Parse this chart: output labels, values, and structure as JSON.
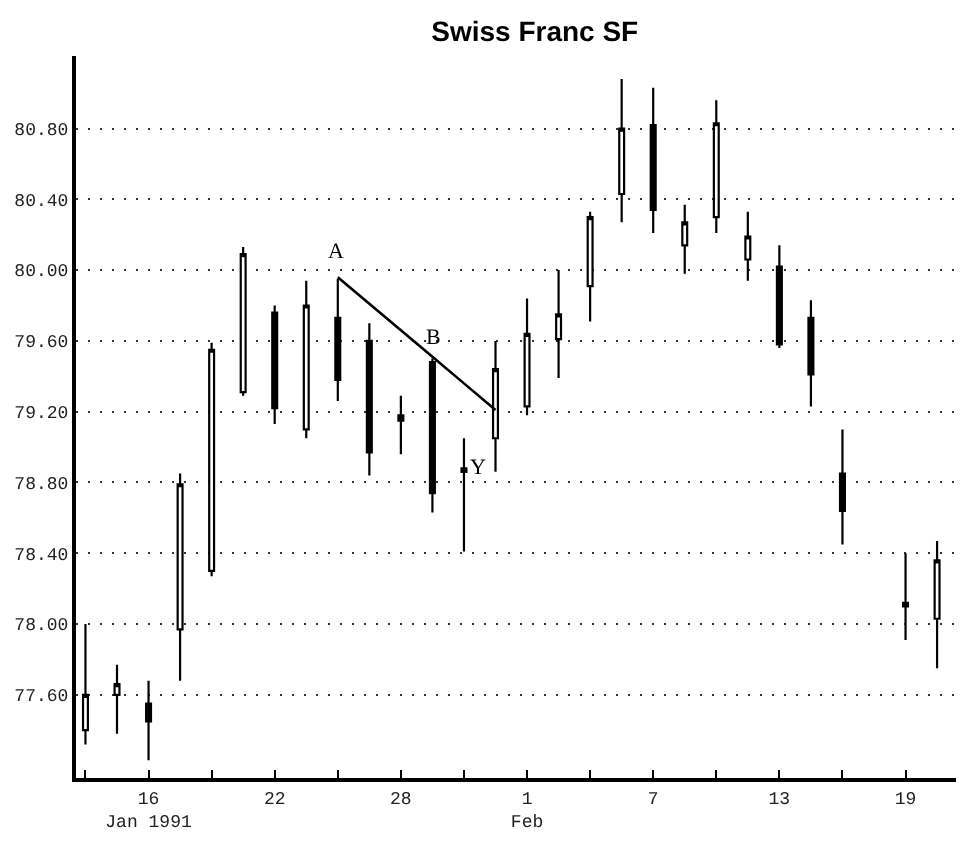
{
  "chart_data": {
    "type": "candlestick",
    "title": "Swiss Franc SF",
    "color": "#000000",
    "categories": [
      null,
      null,
      "16\nJan 1991",
      null,
      null,
      null,
      "22",
      null,
      null,
      null,
      "28",
      null,
      null,
      null,
      "1\nFeb",
      null,
      null,
      null,
      "7",
      null,
      null,
      null,
      "13",
      null,
      null,
      null,
      "19",
      null
    ],
    "ohlc": [
      [
        77.4,
        78.0,
        77.32,
        77.6
      ],
      [
        77.6,
        77.77,
        77.38,
        77.66
      ],
      [
        77.55,
        77.68,
        77.23,
        77.45
      ],
      [
        77.97,
        78.85,
        77.68,
        78.79
      ],
      [
        78.3,
        79.59,
        78.27,
        79.55
      ],
      [
        79.31,
        80.13,
        79.29,
        80.09
      ],
      [
        79.76,
        79.8,
        79.13,
        79.22
      ],
      [
        79.1,
        79.94,
        79.05,
        79.8
      ],
      [
        79.73,
        79.95,
        79.26,
        79.38
      ],
      [
        79.6,
        79.7,
        78.84,
        78.97
      ],
      [
        79.18,
        79.29,
        78.96,
        79.15
      ],
      [
        79.48,
        79.5,
        78.63,
        78.74
      ],
      [
        78.88,
        79.05,
        78.41,
        78.86
      ],
      [
        79.05,
        79.6,
        78.86,
        79.44
      ],
      [
        79.23,
        79.84,
        79.18,
        79.64
      ],
      [
        79.61,
        80.0,
        79.39,
        79.75
      ],
      [
        79.91,
        80.33,
        79.71,
        80.3
      ],
      [
        80.43,
        81.08,
        80.27,
        80.8
      ],
      [
        80.82,
        81.03,
        80.21,
        80.34
      ],
      [
        80.14,
        80.37,
        79.98,
        80.27
      ],
      [
        80.3,
        80.96,
        80.21,
        80.83
      ],
      [
        80.06,
        80.33,
        79.94,
        80.19
      ],
      [
        80.02,
        80.14,
        79.56,
        79.58
      ],
      [
        79.73,
        79.83,
        79.23,
        79.41
      ],
      [
        78.85,
        79.1,
        78.45,
        78.64
      ],
      null,
      [
        78.12,
        78.4,
        77.91,
        78.1
      ],
      [
        78.03,
        78.47,
        77.75,
        78.36
      ]
    ],
    "series": [
      {
        "type": "line",
        "color": "#000000",
        "values": [
          null,
          null,
          null,
          null,
          null,
          null,
          null,
          null,
          79.96,
          79.81,
          79.66,
          79.51,
          79.36,
          79.21,
          null,
          null,
          null,
          null,
          null,
          null,
          null,
          null,
          null,
          null,
          null,
          null,
          null,
          null
        ]
      }
    ],
    "annotations": [
      "A",
      "B",
      "Y"
    ],
    "ylim": [
      77.13,
      81.21
    ],
    "yticks": [
      {
        "value": 77.6,
        "label": "77.60"
      },
      {
        "value": 78.0,
        "label": "78.00"
      },
      {
        "value": 78.4,
        "label": "78.40"
      },
      {
        "value": 78.8,
        "label": "78.80"
      },
      {
        "value": 79.2,
        "label": "79.20"
      },
      {
        "value": 79.6,
        "label": "79.60"
      },
      {
        "value": 80.0,
        "label": "80.00"
      },
      {
        "value": 80.4,
        "label": "80.40"
      },
      {
        "value": 80.8,
        "label": "80.80"
      }
    ],
    "grid": "y"
  }
}
